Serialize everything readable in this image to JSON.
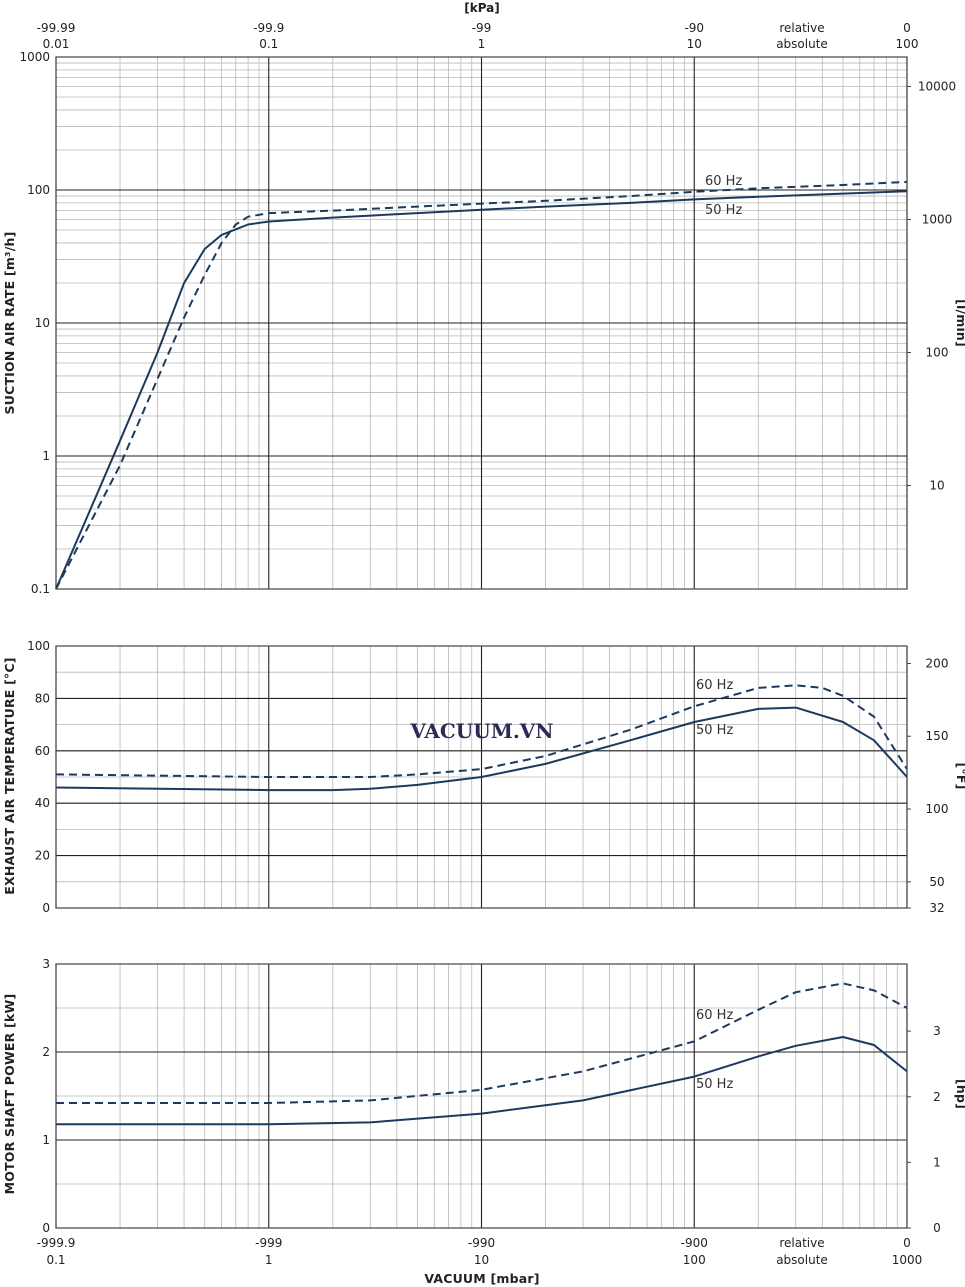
{
  "watermark": "VACUUM.VN",
  "colors": {
    "line": "#1c3a5e",
    "grid_major": "#222222",
    "grid_minor": "#b8b8b8",
    "frame": "#444444"
  },
  "top_axis": {
    "unit": "[kPa]",
    "ticks": [
      {
        "x": 0.01,
        "line1": "-99.99",
        "line2": "0.01"
      },
      {
        "x": 0.1,
        "line1": "-99.9",
        "line2": "0.1"
      },
      {
        "x": 1,
        "line1": "-99",
        "line2": "1"
      },
      {
        "x": 10,
        "line1": "-90",
        "line2": "10"
      },
      {
        "x": 100,
        "line1": "0",
        "line2": "100"
      }
    ],
    "mode_line1": "relative",
    "mode_line2": "absolute"
  },
  "bottom_axis": {
    "title": "VACUUM  [mbar]",
    "ticks": [
      {
        "x": 0.1,
        "line1": "-999.9",
        "line2": "0.1"
      },
      {
        "x": 1,
        "line1": "-999",
        "line2": "1"
      },
      {
        "x": 10,
        "line1": "-990",
        "line2": "10"
      },
      {
        "x": 100,
        "line1": "-900",
        "line2": "100"
      },
      {
        "x": 1000,
        "line1": "0",
        "line2": "1000"
      }
    ],
    "mode_line1": "relative",
    "mode_line2": "absolute"
  },
  "chart_data": [
    {
      "type": "line",
      "panel": "suction",
      "ylabel": "SUCTION AIR RATE  [m³/h]",
      "y2label": "[l/min]",
      "xscale": "log",
      "xlim": [
        0.1,
        1000
      ],
      "yscale": "log",
      "ylim": [
        0.1,
        1000
      ],
      "y_ticks": [
        "0.1",
        "1",
        "10",
        "100",
        "1000"
      ],
      "y2_ticks": [
        "10",
        "100",
        "1000",
        "10000"
      ],
      "series": [
        {
          "name": "50 Hz",
          "style": "solid",
          "x": [
            0.1,
            0.2,
            0.3,
            0.4,
            0.5,
            0.6,
            0.8,
            1,
            2,
            5,
            10,
            20,
            50,
            100,
            200,
            500,
            1000
          ],
          "y": [
            0.1,
            1.3,
            6.0,
            20,
            36,
            46,
            55,
            58,
            62,
            67,
            71,
            75,
            80,
            85,
            89,
            94,
            98
          ]
        },
        {
          "name": "60 Hz",
          "style": "dashed",
          "x": [
            0.1,
            0.2,
            0.3,
            0.4,
            0.5,
            0.6,
            0.7,
            0.8,
            1,
            2,
            5,
            10,
            20,
            50,
            100,
            200,
            500,
            1000
          ],
          "y": [
            0.1,
            0.85,
            3.8,
            11,
            23,
            40,
            55,
            63,
            67,
            70,
            75,
            79,
            83,
            90,
            97,
            103,
            109,
            115
          ]
        }
      ]
    },
    {
      "type": "line",
      "panel": "temperature",
      "ylabel": "EXHAUST AIR TEMPERATURE  [°C]",
      "y2label": "[°F]",
      "xscale": "log",
      "xlim": [
        0.1,
        1000
      ],
      "ylim": [
        0,
        100
      ],
      "y_ticks": [
        "0",
        "20",
        "40",
        "60",
        "80",
        "100"
      ],
      "y2_ticks": [
        "32",
        "50",
        "100",
        "150",
        "200"
      ],
      "series": [
        {
          "name": "50 Hz",
          "style": "solid",
          "x": [
            0.1,
            1,
            2,
            3,
            5,
            10,
            20,
            50,
            100,
            200,
            300,
            500,
            700,
            1000
          ],
          "y": [
            46,
            45,
            45,
            45.5,
            47,
            50,
            55,
            64,
            71,
            76,
            76.5,
            71,
            64,
            50
          ]
        },
        {
          "name": "60 Hz",
          "style": "dashed",
          "x": [
            0.1,
            1,
            3,
            5,
            10,
            20,
            50,
            100,
            200,
            300,
            400,
            500,
            700,
            1000
          ],
          "y": [
            51,
            50,
            50,
            51,
            53,
            58,
            68,
            77,
            84,
            85,
            84,
            81,
            73,
            53
          ]
        }
      ]
    },
    {
      "type": "line",
      "panel": "power",
      "ylabel": "MOTOR SHAFT POWER  [kW]",
      "y2label": "[hp]",
      "xscale": "log",
      "xlim": [
        0.1,
        1000
      ],
      "ylim": [
        0,
        3
      ],
      "y_ticks": [
        "0",
        "1",
        "2",
        "3"
      ],
      "y2_ticks": [
        "0",
        "1",
        "2",
        "3"
      ],
      "series": [
        {
          "name": "50 Hz",
          "style": "solid",
          "x": [
            0.1,
            1,
            3,
            10,
            30,
            100,
            200,
            300,
            500,
            700,
            1000
          ],
          "y": [
            1.18,
            1.18,
            1.2,
            1.3,
            1.45,
            1.72,
            1.95,
            2.07,
            2.17,
            2.08,
            1.78
          ]
        },
        {
          "name": "60 Hz",
          "style": "dashed",
          "x": [
            0.1,
            1,
            3,
            10,
            30,
            100,
            200,
            300,
            500,
            700,
            1000
          ],
          "y": [
            1.42,
            1.42,
            1.45,
            1.57,
            1.78,
            2.12,
            2.48,
            2.68,
            2.78,
            2.7,
            2.5
          ]
        }
      ]
    }
  ]
}
